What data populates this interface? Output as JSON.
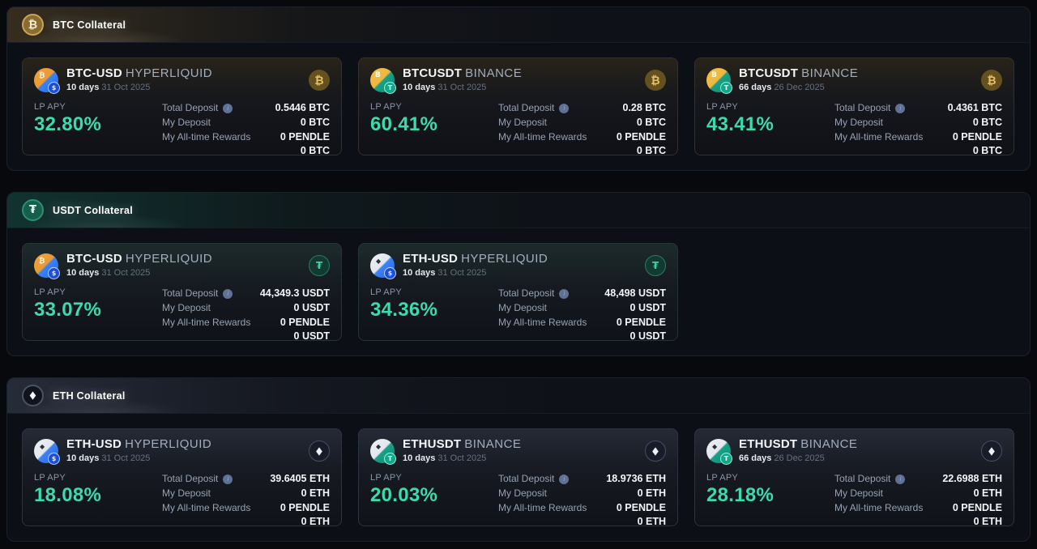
{
  "labels": {
    "lp_apy": "LP APY",
    "total_deposit": "Total Deposit",
    "my_deposit": "My Deposit",
    "rewards": "My All-time Rewards"
  },
  "icons": {
    "btc_glyph": "₿",
    "usdt_glyph": "₮",
    "eth_glyph": "◆"
  },
  "colors": {
    "apy_accent": "#3bdcab",
    "btc_gold": "#c8a557",
    "usdt_teal": "#2f8f72",
    "eth_gray": "#4a5266"
  },
  "sections": [
    {
      "label": "BTC Collateral",
      "collateral": "BTC",
      "markets": [
        {
          "name": "BTC-USD",
          "venue": "HYPERLIQUID",
          "days": "10 days",
          "maturity": "31 Oct 2025",
          "lp_apy": "32.80%",
          "total_deposit": "0.5446 BTC",
          "my_deposit": "0 BTC",
          "rewards": [
            "0 PENDLE",
            "0 BTC"
          ]
        },
        {
          "name": "BTCUSDT",
          "venue": "BINANCE",
          "days": "10 days",
          "maturity": "31 Oct 2025",
          "lp_apy": "60.41%",
          "total_deposit": "0.28 BTC",
          "my_deposit": "0 BTC",
          "rewards": [
            "0 PENDLE",
            "0 BTC"
          ]
        },
        {
          "name": "BTCUSDT",
          "venue": "BINANCE",
          "days": "66 days",
          "maturity": "26 Dec 2025",
          "lp_apy": "43.41%",
          "total_deposit": "0.4361 BTC",
          "my_deposit": "0 BTC",
          "rewards": [
            "0 PENDLE",
            "0 BTC"
          ]
        }
      ]
    },
    {
      "label": "USDT Collateral",
      "collateral": "USDT",
      "markets": [
        {
          "name": "BTC-USD",
          "venue": "HYPERLIQUID",
          "days": "10 days",
          "maturity": "31 Oct 2025",
          "lp_apy": "33.07%",
          "total_deposit": "44,349.3 USDT",
          "my_deposit": "0 USDT",
          "rewards": [
            "0 PENDLE",
            "0 USDT"
          ]
        },
        {
          "name": "ETH-USD",
          "venue": "HYPERLIQUID",
          "days": "10 days",
          "maturity": "31 Oct 2025",
          "lp_apy": "34.36%",
          "total_deposit": "48,498 USDT",
          "my_deposit": "0 USDT",
          "rewards": [
            "0 PENDLE",
            "0 USDT"
          ]
        }
      ]
    },
    {
      "label": "ETH Collateral",
      "collateral": "ETH",
      "markets": [
        {
          "name": "ETH-USD",
          "venue": "HYPERLIQUID",
          "days": "10 days",
          "maturity": "31 Oct 2025",
          "lp_apy": "18.08%",
          "total_deposit": "39.6405 ETH",
          "my_deposit": "0 ETH",
          "rewards": [
            "0 PENDLE",
            "0 ETH"
          ]
        },
        {
          "name": "ETHUSDT",
          "venue": "BINANCE",
          "days": "10 days",
          "maturity": "31 Oct 2025",
          "lp_apy": "20.03%",
          "total_deposit": "18.9736 ETH",
          "my_deposit": "0 ETH",
          "rewards": [
            "0 PENDLE",
            "0 ETH"
          ]
        },
        {
          "name": "ETHUSDT",
          "venue": "BINANCE",
          "days": "66 days",
          "maturity": "26 Dec 2025",
          "lp_apy": "28.18%",
          "total_deposit": "22.6988 ETH",
          "my_deposit": "0 ETH",
          "rewards": [
            "0 PENDLE",
            "0 ETH"
          ]
        }
      ]
    }
  ]
}
